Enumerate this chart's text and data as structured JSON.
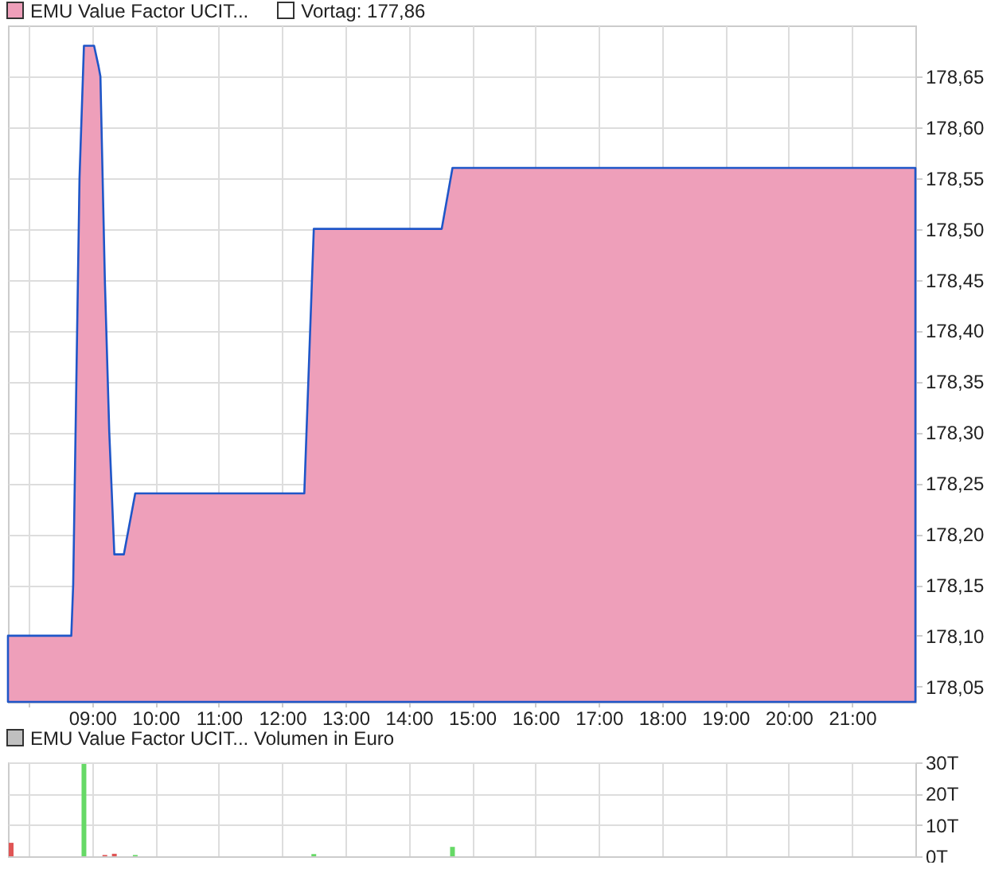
{
  "chart_data": [
    {
      "type": "area",
      "legend": "top left",
      "grid": true,
      "tick_labels": "xy",
      "annotations": [
        "Vortag: 177,86"
      ],
      "xlim": [
        7.67,
        22
      ],
      "ylim": [
        178.035,
        178.7
      ],
      "xticks": [
        {
          "value": 8,
          "label": null
        },
        {
          "value": 9,
          "label": "09:00"
        },
        {
          "value": 10,
          "label": "10:00"
        },
        {
          "value": 11,
          "label": "11:00"
        },
        {
          "value": 12,
          "label": "12:00"
        },
        {
          "value": 13,
          "label": "13:00"
        },
        {
          "value": 14,
          "label": "14:00"
        },
        {
          "value": 15,
          "label": "15:00"
        },
        {
          "value": 16,
          "label": "16:00"
        },
        {
          "value": 17,
          "label": "17:00"
        },
        {
          "value": 18,
          "label": "18:00"
        },
        {
          "value": 19,
          "label": "19:00"
        },
        {
          "value": 20,
          "label": "20:00"
        },
        {
          "value": 21,
          "label": "21:00"
        }
      ],
      "yticks": [
        {
          "value": 178.05,
          "label": "178,05"
        },
        {
          "value": 178.1,
          "label": "178,10"
        },
        {
          "value": 178.15,
          "label": "178,15"
        },
        {
          "value": 178.2,
          "label": "178,20"
        },
        {
          "value": 178.25,
          "label": "178,25"
        },
        {
          "value": 178.3,
          "label": "178,30"
        },
        {
          "value": 178.35,
          "label": "178,35"
        },
        {
          "value": 178.4,
          "label": "178,40"
        },
        {
          "value": 178.45,
          "label": "178,45"
        },
        {
          "value": 178.5,
          "label": "178,50"
        },
        {
          "value": 178.55,
          "label": "178,55"
        },
        {
          "value": 178.6,
          "label": "178,60"
        },
        {
          "value": 178.65,
          "label": "178,65"
        }
      ],
      "x": [
        7.67,
        8.67,
        8.7,
        8.75,
        8.8,
        8.87,
        9.03,
        9.1,
        9.13,
        9.2,
        9.27,
        9.35,
        9.5,
        9.68,
        12.35,
        12.5,
        14.52,
        14.69,
        22
      ],
      "series": [
        {
          "name": "EMU Value Factor UCIT...",
          "color": "#ee9fba",
          "values": [
            178.1,
            178.1,
            178.15,
            178.35,
            178.55,
            178.68,
            178.68,
            178.66,
            178.65,
            178.45,
            178.3,
            178.18,
            178.18,
            178.24,
            178.24,
            178.5,
            178.5,
            178.56,
            178.56
          ]
        }
      ]
    },
    {
      "type": "bar",
      "legend": "top left",
      "grid": true,
      "tick_labels": "y",
      "xlim": [
        7.67,
        22
      ],
      "ylim": [
        0,
        30
      ],
      "xticks": [
        {
          "value": 8,
          "label": null
        },
        {
          "value": 9,
          "label": null
        },
        {
          "value": 10,
          "label": null
        },
        {
          "value": 11,
          "label": null
        },
        {
          "value": 12,
          "label": null
        },
        {
          "value": 13,
          "label": null
        },
        {
          "value": 14,
          "label": null
        },
        {
          "value": 15,
          "label": null
        },
        {
          "value": 16,
          "label": null
        },
        {
          "value": 17,
          "label": null
        },
        {
          "value": 18,
          "label": null
        },
        {
          "value": 19,
          "label": null
        },
        {
          "value": 20,
          "label": null
        },
        {
          "value": 21,
          "label": null
        }
      ],
      "yticks": [
        {
          "value": 0,
          "label": "0T"
        },
        {
          "value": 10,
          "label": "10T"
        },
        {
          "value": 20,
          "label": "20T"
        },
        {
          "value": 30,
          "label": "30T"
        }
      ],
      "x": [
        7.72,
        8.87,
        9.2,
        9.35,
        9.68,
        12.5,
        14.69
      ],
      "series": [
        {
          "name": "EMU Value Factor UCIT... Volumen in Euro",
          "color": "#c0c0c0",
          "values": [
            4.3,
            29.5,
            0.4,
            0.8,
            0.4,
            0.7,
            3
          ],
          "colors": [
            "#e05555",
            "#66d966",
            "#e05555",
            "#e05555",
            "#66d966",
            "#66d966",
            "#66d966"
          ]
        }
      ]
    }
  ]
}
